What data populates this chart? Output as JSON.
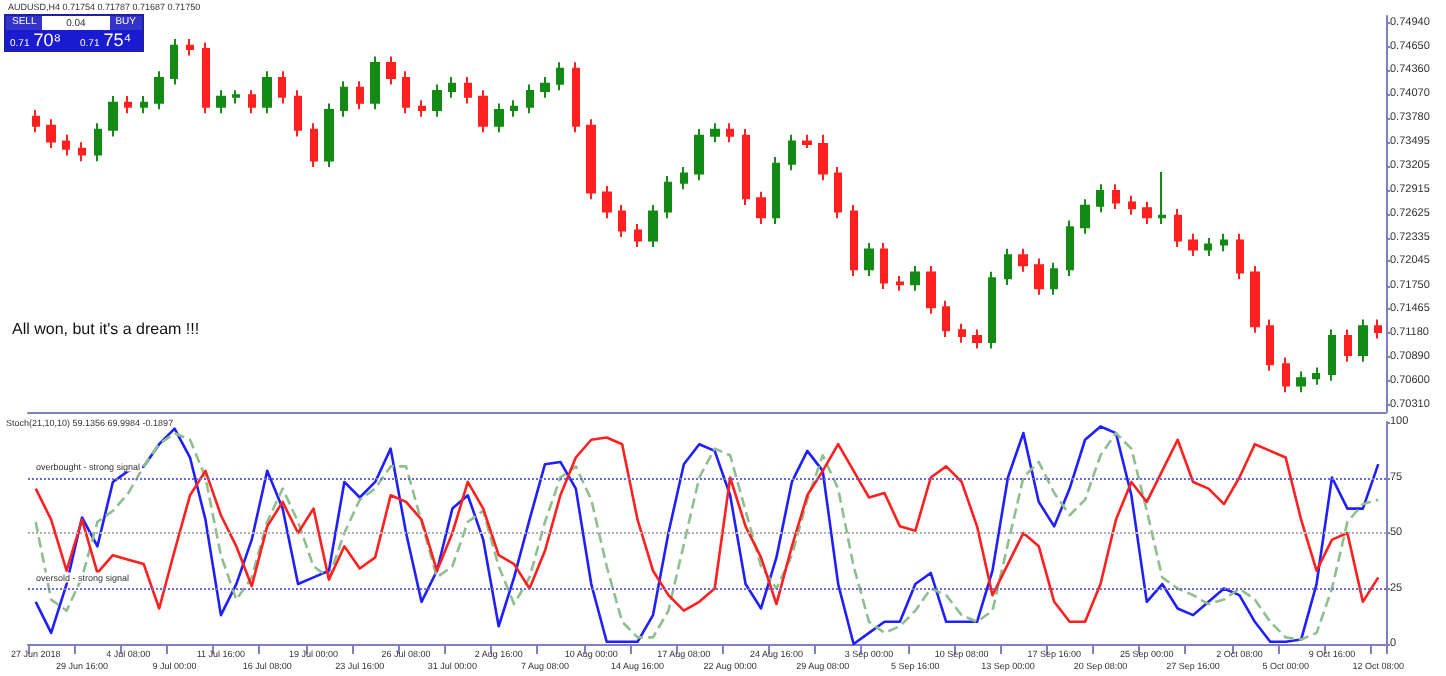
{
  "chart_data": [
    {
      "type": "candlestick",
      "annotations": [
        "AUDUSD,H4  0.71754 0.71787 0.71687 0.71750",
        "SELL",
        "0.04",
        "BUY",
        "0.71",
        "70⁸",
        "0.71",
        "75⁴",
        "All won, but it's a dream !!!"
      ],
      "ohlc": [
        [
          0.738,
          0.7388,
          0.7361,
          0.7369
        ],
        [
          0.7369,
          0.7377,
          0.7342,
          0.735
        ],
        [
          0.735,
          0.7358,
          0.7333,
          0.7341
        ],
        [
          0.7341,
          0.7349,
          0.7326,
          0.7334
        ],
        [
          0.7334,
          0.7372,
          0.7326,
          0.7364
        ],
        [
          0.7364,
          0.7405,
          0.7356,
          0.7397
        ],
        [
          0.7397,
          0.7405,
          0.7384,
          0.7392
        ],
        [
          0.7392,
          0.7405,
          0.7384,
          0.7397
        ],
        [
          0.7397,
          0.7435,
          0.7389,
          0.7427
        ],
        [
          0.7427,
          0.7474,
          0.7419,
          0.7466
        ],
        [
          0.7466,
          0.7474,
          0.7454,
          0.7462
        ],
        [
          0.7462,
          0.747,
          0.7384,
          0.7392
        ],
        [
          0.7392,
          0.7412,
          0.7384,
          0.7404
        ],
        [
          0.7404,
          0.7412,
          0.7396,
          0.7406
        ],
        [
          0.7406,
          0.7412,
          0.7384,
          0.7392
        ],
        [
          0.7392,
          0.7435,
          0.7384,
          0.7427
        ],
        [
          0.7427,
          0.7435,
          0.7396,
          0.7404
        ],
        [
          0.7404,
          0.7412,
          0.7356,
          0.7364
        ],
        [
          0.7364,
          0.7372,
          0.7319,
          0.7327
        ],
        [
          0.7327,
          0.7396,
          0.7319,
          0.7388
        ],
        [
          0.7388,
          0.7423,
          0.738,
          0.7415
        ],
        [
          0.7415,
          0.7423,
          0.7389,
          0.7397
        ],
        [
          0.7397,
          0.7453,
          0.7389,
          0.7445
        ],
        [
          0.7445,
          0.7453,
          0.7419,
          0.7427
        ],
        [
          0.7427,
          0.7435,
          0.7384,
          0.7392
        ],
        [
          0.7392,
          0.74,
          0.738,
          0.7388
        ],
        [
          0.7388,
          0.7419,
          0.738,
          0.7411
        ],
        [
          0.7411,
          0.7428,
          0.7403,
          0.742
        ],
        [
          0.742,
          0.7428,
          0.7396,
          0.7404
        ],
        [
          0.7404,
          0.7412,
          0.7361,
          0.7369
        ],
        [
          0.7369,
          0.7396,
          0.7361,
          0.7388
        ],
        [
          0.7388,
          0.74,
          0.738,
          0.7392
        ],
        [
          0.7392,
          0.7419,
          0.7384,
          0.7411
        ],
        [
          0.7411,
          0.7428,
          0.7403,
          0.742
        ],
        [
          0.742,
          0.7446,
          0.7412,
          0.7438
        ],
        [
          0.7438,
          0.7446,
          0.7361,
          0.7369
        ],
        [
          0.7369,
          0.7377,
          0.728,
          0.7288
        ],
        [
          0.7288,
          0.7296,
          0.7257,
          0.7265
        ],
        [
          0.7265,
          0.7273,
          0.7234,
          0.7242
        ],
        [
          0.7242,
          0.725,
          0.7222,
          0.723
        ],
        [
          0.723,
          0.7273,
          0.7222,
          0.7265
        ],
        [
          0.7265,
          0.7308,
          0.7257,
          0.73
        ],
        [
          0.73,
          0.7319,
          0.7292,
          0.7311
        ],
        [
          0.7311,
          0.7365,
          0.7303,
          0.7357
        ],
        [
          0.7357,
          0.7372,
          0.7349,
          0.7364
        ],
        [
          0.7364,
          0.7372,
          0.7349,
          0.7357
        ],
        [
          0.7357,
          0.7365,
          0.7273,
          0.7281
        ],
        [
          0.7281,
          0.7289,
          0.725,
          0.7258
        ],
        [
          0.7258,
          0.7331,
          0.725,
          0.7323
        ],
        [
          0.7323,
          0.7358,
          0.7315,
          0.735
        ],
        [
          0.735,
          0.7358,
          0.7342,
          0.7347
        ],
        [
          0.7347,
          0.7358,
          0.7303,
          0.7311
        ],
        [
          0.7311,
          0.7319,
          0.7257,
          0.7265
        ],
        [
          0.7265,
          0.7273,
          0.7187,
          0.7195
        ],
        [
          0.7195,
          0.7227,
          0.7187,
          0.7219
        ],
        [
          0.7219,
          0.7227,
          0.7171,
          0.7179
        ],
        [
          0.7179,
          0.7187,
          0.7169,
          0.7177
        ],
        [
          0.7177,
          0.7199,
          0.7169,
          0.7191
        ],
        [
          0.7191,
          0.7199,
          0.7141,
          0.7149
        ],
        [
          0.7149,
          0.7157,
          0.7113,
          0.7121
        ],
        [
          0.7121,
          0.7129,
          0.7106,
          0.7114
        ],
        [
          0.7114,
          0.7122,
          0.7099,
          0.7107
        ],
        [
          0.7107,
          0.7192,
          0.7099,
          0.7184
        ],
        [
          0.7184,
          0.722,
          0.7176,
          0.7212
        ],
        [
          0.7212,
          0.722,
          0.7192,
          0.72
        ],
        [
          0.72,
          0.7208,
          0.7164,
          0.7172
        ],
        [
          0.7172,
          0.7203,
          0.7164,
          0.7195
        ],
        [
          0.7195,
          0.7254,
          0.7187,
          0.7246
        ],
        [
          0.7246,
          0.728,
          0.7238,
          0.7272
        ],
        [
          0.7272,
          0.7298,
          0.7264,
          0.729
        ],
        [
          0.729,
          0.7298,
          0.7268,
          0.7276
        ],
        [
          0.7276,
          0.7284,
          0.7261,
          0.7269
        ],
        [
          0.7269,
          0.7277,
          0.725,
          0.7258
        ],
        [
          0.7258,
          0.7313,
          0.725,
          0.726
        ],
        [
          0.726,
          0.7268,
          0.7222,
          0.723
        ],
        [
          0.723,
          0.7238,
          0.7211,
          0.7219
        ],
        [
          0.7219,
          0.7233,
          0.7211,
          0.7225
        ],
        [
          0.7225,
          0.7238,
          0.7217,
          0.723
        ],
        [
          0.723,
          0.7238,
          0.7183,
          0.7191
        ],
        [
          0.7191,
          0.7199,
          0.7118,
          0.7126
        ],
        [
          0.7126,
          0.7134,
          0.7072,
          0.708
        ],
        [
          0.708,
          0.7088,
          0.7046,
          0.7054
        ],
        [
          0.7054,
          0.7071,
          0.7046,
          0.7063
        ],
        [
          0.7063,
          0.7076,
          0.7055,
          0.7068
        ],
        [
          0.7068,
          0.7122,
          0.706,
          0.7114
        ],
        [
          0.7114,
          0.7122,
          0.7083,
          0.7091
        ],
        [
          0.7091,
          0.7134,
          0.7083,
          0.7126
        ],
        [
          0.7126,
          0.7134,
          0.7111,
          0.7119
        ]
      ],
      "ylim": [
        0.7022,
        0.7502
      ],
      "yticks": [
        {
          "value": 0.7031,
          "label": "0.70310"
        },
        {
          "value": 0.706,
          "label": "0.70600"
        },
        {
          "value": 0.7089,
          "label": "0.70890"
        },
        {
          "value": 0.7118,
          "label": "0.71180"
        },
        {
          "value": 0.71465,
          "label": "0.71465"
        },
        {
          "value": 0.7175,
          "label": "0.71750"
        },
        {
          "value": 0.72045,
          "label": "0.72045"
        },
        {
          "value": 0.72335,
          "label": "0.72335"
        },
        {
          "value": 0.72625,
          "label": "0.72625"
        },
        {
          "value": 0.72915,
          "label": "0.72915"
        },
        {
          "value": 0.73205,
          "label": "0.73205"
        },
        {
          "value": 0.73495,
          "label": "0.73495"
        },
        {
          "value": 0.7378,
          "label": "0.73780"
        },
        {
          "value": 0.7407,
          "label": "0.74070"
        },
        {
          "value": 0.7436,
          "label": "0.74360"
        },
        {
          "value": 0.7465,
          "label": "0.74650"
        },
        {
          "value": 0.7494,
          "label": "0.74940"
        }
      ],
      "tick_labels": "y"
    },
    {
      "type": "line",
      "annotations": [
        "Stoch(21,10,10) 59.1356 69.9984 -0.1897"
      ],
      "categories": [
        "27 Jun 2018",
        null,
        null,
        "29 Jun 16:00",
        null,
        null,
        "4 Jul 08:00",
        null,
        null,
        "9 Jul 00:00",
        null,
        null,
        "11 Jul 16:00",
        null,
        null,
        "16 Jul 08:00",
        null,
        null,
        "19 Jul 00:00",
        null,
        null,
        "23 Jul 16:00",
        null,
        null,
        "26 Jul 08:00",
        null,
        null,
        "31 Jul 00:00",
        null,
        null,
        "2 Aug 16:00",
        null,
        null,
        "7 Aug 08:00",
        null,
        null,
        "10 Aug 00:00",
        null,
        null,
        "14 Aug 16:00",
        null,
        null,
        "17 Aug 08:00",
        null,
        null,
        "22 Aug 00:00",
        null,
        null,
        "24 Aug 16:00",
        null,
        null,
        "29 Aug 08:00",
        null,
        null,
        "3 Sep 00:00",
        null,
        null,
        "5 Sep 16:00",
        null,
        null,
        "10 Sep 08:00",
        null,
        null,
        "13 Sep 00:00",
        null,
        null,
        "17 Sep 16:00",
        null,
        null,
        "20 Sep 08:00",
        null,
        null,
        "25 Sep 00:00",
        null,
        null,
        "27 Sep 16:00",
        null,
        null,
        "2 Oct 08:00",
        null,
        null,
        "5 Oct 00:00",
        null,
        null,
        "9 Oct 16:00",
        null,
        null,
        "12 Oct 08:00"
      ],
      "series": [
        {
          "color": "#1f1fff",
          "line_style": "solid",
          "values": [
            19,
            5,
            27,
            57,
            44,
            73,
            78,
            80,
            90,
            97,
            84,
            56,
            13,
            27,
            47,
            78,
            61,
            27,
            30,
            33,
            73,
            66,
            73,
            88,
            50,
            19,
            33,
            61,
            67,
            47,
            8,
            30,
            56,
            81,
            82,
            70,
            27,
            1,
            1,
            1,
            13,
            50,
            81,
            90,
            87,
            67,
            27,
            16,
            39,
            73,
            87,
            78,
            27,
            0,
            5,
            10,
            10,
            27,
            32,
            10,
            10,
            10,
            33,
            75,
            95,
            64,
            53,
            70,
            92,
            98,
            95,
            67,
            19,
            27,
            16,
            13,
            19,
            25,
            22,
            10,
            1,
            1,
            2,
            27,
            75,
            61,
            61,
            81
          ]
        },
        {
          "color": "#8fbf8f",
          "line_style": "dashed",
          "values": [
            55,
            20,
            15,
            30,
            55,
            60,
            68,
            80,
            90,
            95,
            92,
            75,
            40,
            20,
            30,
            55,
            70,
            55,
            35,
            30,
            50,
            65,
            70,
            80,
            80,
            55,
            30,
            35,
            55,
            60,
            35,
            18,
            30,
            55,
            75,
            80,
            65,
            35,
            10,
            3,
            3,
            15,
            45,
            75,
            88,
            85,
            60,
            35,
            25,
            40,
            65,
            85,
            70,
            35,
            10,
            5,
            8,
            15,
            25,
            22,
            13,
            10,
            15,
            45,
            75,
            82,
            68,
            58,
            65,
            85,
            95,
            88,
            60,
            30,
            25,
            22,
            18,
            20,
            25,
            20,
            10,
            3,
            2,
            5,
            25,
            55,
            63,
            65
          ]
        },
        {
          "color": "#ff2020",
          "line_style": "solid",
          "values": [
            70,
            56,
            33,
            56,
            32,
            40,
            38,
            36,
            16,
            42,
            67,
            78,
            58,
            44,
            26,
            53,
            64,
            50,
            61,
            29,
            44,
            34,
            39,
            67,
            64,
            56,
            33,
            50,
            73,
            61,
            40,
            36,
            25,
            42,
            67,
            84,
            92,
            93,
            90,
            56,
            33,
            22,
            15,
            19,
            25,
            75,
            53,
            39,
            18,
            44,
            67,
            78,
            90,
            78,
            66,
            68,
            53,
            51,
            75,
            80,
            73,
            53,
            22,
            36,
            50,
            44,
            19,
            10,
            10,
            27,
            56,
            73,
            64,
            78,
            92,
            73,
            70,
            63,
            75,
            90,
            87,
            84,
            56,
            33,
            47,
            50,
            19,
            30
          ]
        }
      ],
      "ylim": [
        0,
        100
      ],
      "yticks": [
        0,
        25,
        50,
        75,
        100
      ],
      "marker": "none",
      "ref_lines": [
        {
          "axis": "y",
          "value": 75,
          "label": "overbought - strong signal",
          "color": "#6a6adf",
          "line_style": "dotted"
        },
        {
          "axis": "y",
          "value": 50,
          "color": "#b0b0b0",
          "line_style": "dotted"
        },
        {
          "axis": "y",
          "value": 25,
          "label": "oversold - strong signal",
          "color": "#6a6adf",
          "line_style": "dotted"
        }
      ]
    }
  ]
}
